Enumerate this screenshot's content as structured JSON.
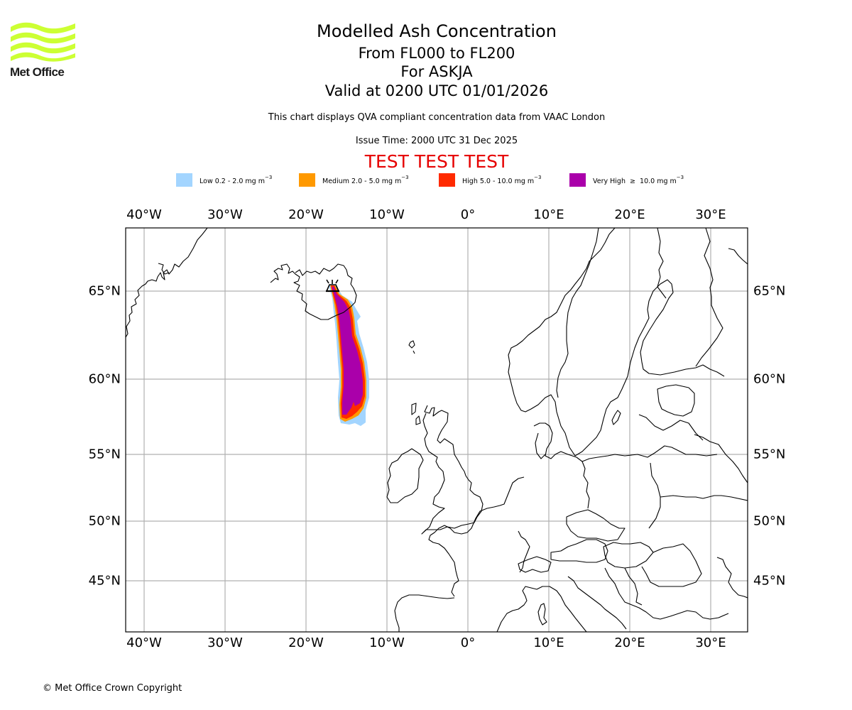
{
  "logo": {
    "text": "Met Office",
    "color": "#ccff33"
  },
  "title": {
    "line1": "Modelled Ash Concentration",
    "line2": "From FL000 to FL200",
    "line3": "For ASKJA",
    "line4": "Valid at 0200 UTC 01/01/2026"
  },
  "subtitle": {
    "description": "This chart displays QVA compliant concentration data from VAAC London",
    "issue_time": "Issue Time: 2000 UTC 31 Dec 2025",
    "test_banner": "TEST TEST TEST",
    "test_color": "#e60000"
  },
  "legend": [
    {
      "label": "Low 0.2 - 2.0 mg m",
      "unit_exp": "−3",
      "color": "#a3d5ff"
    },
    {
      "label": "Medium 2.0 - 5.0 mg m",
      "unit_exp": "−3",
      "color": "#ff9900"
    },
    {
      "label": "High 5.0 - 10.0 mg m",
      "unit_exp": "−3",
      "color": "#ff2a00"
    },
    {
      "label": "Very High  ≥  10.0 mg m",
      "unit_exp": "−3",
      "color": "#aa00aa"
    }
  ],
  "axes": {
    "lon_labels": [
      "40°W",
      "30°W",
      "20°W",
      "10°W",
      "0°",
      "10°E",
      "20°E",
      "30°E"
    ],
    "lat_labels": [
      "65°N",
      "60°N",
      "55°N",
      "50°N",
      "45°N"
    ]
  },
  "volcano": {
    "name": "ASKJA",
    "icon": "volcano-icon"
  },
  "footer": {
    "copyright": "© Met Office Crown Copyright"
  }
}
